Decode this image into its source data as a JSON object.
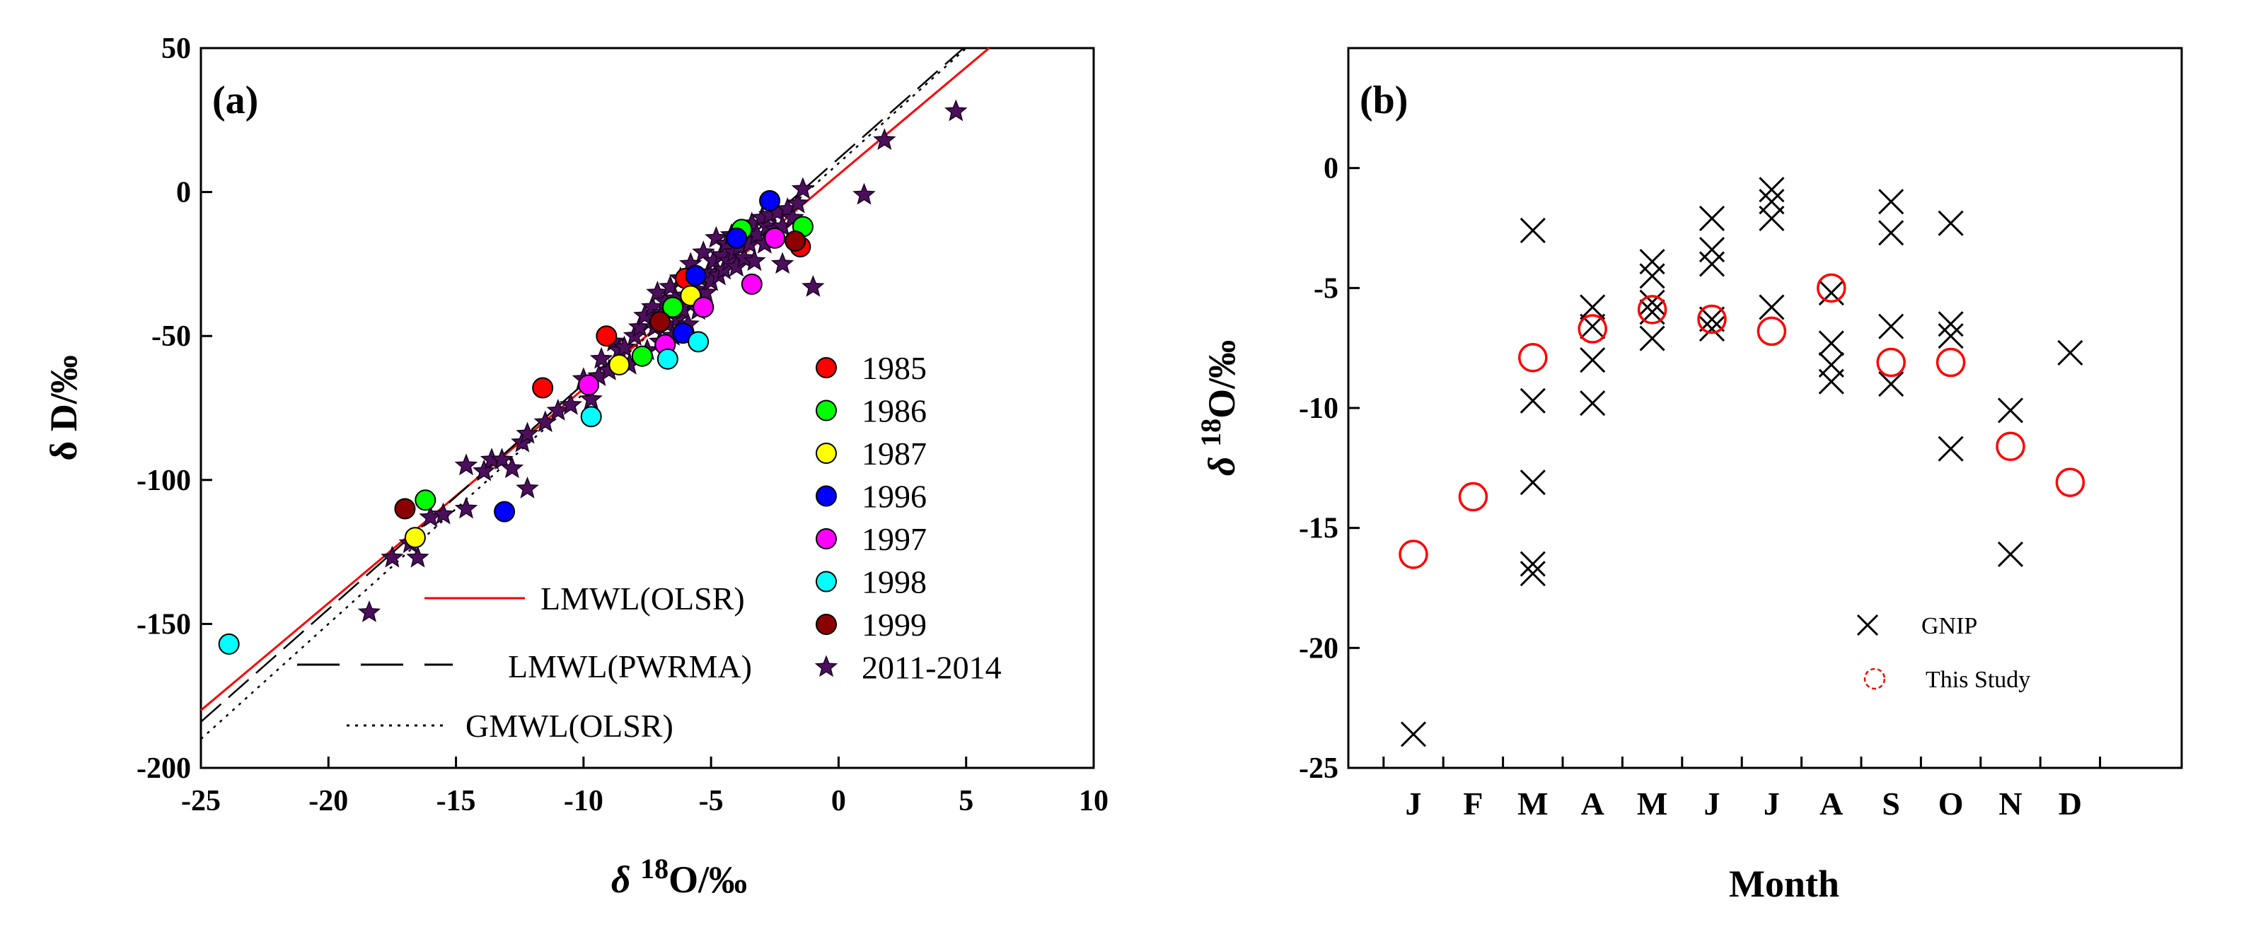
{
  "chart_data": [
    {
      "panel": "(a)",
      "type": "scatter",
      "xlabel": "δ 18O/‰",
      "xlabel_main": "δ ",
      "xlabel_sup": "18",
      "xlabel_tail": "O/‰",
      "ylabel": "δ  D/‰",
      "xlim": [
        -25,
        10
      ],
      "ylim": [
        -200,
        50
      ],
      "xticks": [
        "-25",
        "-20",
        "-15",
        "-10",
        "-5",
        "0",
        "5",
        "10"
      ],
      "yticks": [
        "50",
        "0",
        "-50",
        "-100",
        "-150",
        "-200"
      ],
      "series": [
        {
          "name": "1985",
          "color": "#ff0000",
          "marker": "circle",
          "points": [
            [
              -11.6,
              -68
            ],
            [
              -9.1,
              -50
            ],
            [
              -1.5,
              -19
            ],
            [
              -6,
              -30
            ]
          ]
        },
        {
          "name": "1986",
          "color": "#00ff00",
          "marker": "circle",
          "points": [
            [
              -16.2,
              -107
            ],
            [
              -7.7,
              -57
            ],
            [
              -3.8,
              -13
            ],
            [
              -1.4,
              -12
            ],
            [
              -6.5,
              -40
            ]
          ]
        },
        {
          "name": "1987",
          "color": "#ffff00",
          "marker": "circle",
          "points": [
            [
              -16.6,
              -120
            ],
            [
              -8.6,
              -60
            ],
            [
              -5.8,
              -36
            ]
          ]
        },
        {
          "name": "1996",
          "color": "#0000ff",
          "marker": "circle",
          "points": [
            [
              -13.1,
              -111
            ],
            [
              -6.1,
              -49
            ],
            [
              -5.6,
              -29
            ],
            [
              -4,
              -16
            ],
            [
              -2.7,
              -3
            ]
          ]
        },
        {
          "name": "1997",
          "color": "#ff00ff",
          "marker": "circle",
          "points": [
            [
              -9.8,
              -67
            ],
            [
              -6.8,
              -53
            ],
            [
              -3.4,
              -32
            ],
            [
              -2.5,
              -16
            ],
            [
              -5.3,
              -40
            ]
          ]
        },
        {
          "name": "1998",
          "color": "#00ffff",
          "marker": "circle",
          "points": [
            [
              -23.9,
              -157
            ],
            [
              -9.7,
              -78
            ],
            [
              -6.7,
              -58
            ],
            [
              -5.5,
              -52
            ]
          ]
        },
        {
          "name": "1999",
          "color": "#8b0000",
          "marker": "circle",
          "points": [
            [
              -17,
              -110
            ],
            [
              -1.7,
              -17
            ],
            [
              -7,
              -45
            ]
          ]
        },
        {
          "name": "2011-2014",
          "color": "#4b0f5c",
          "marker": "star",
          "points": [
            [
              -18.4,
              -146
            ],
            [
              -17.5,
              -127
            ],
            [
              -16.5,
              -127
            ],
            [
              -16.8,
              -122
            ],
            [
              -16,
              -113
            ],
            [
              -15.5,
              -112
            ],
            [
              -14.6,
              -110
            ],
            [
              -14.6,
              -95
            ],
            [
              -13.9,
              -97
            ],
            [
              -13.6,
              -93
            ],
            [
              -13.2,
              -93
            ],
            [
              -12.8,
              -96
            ],
            [
              -12.4,
              -87
            ],
            [
              -12.2,
              -84
            ],
            [
              -12.2,
              -103
            ],
            [
              -11.5,
              -80
            ],
            [
              -11,
              -76
            ],
            [
              -10.5,
              -74
            ],
            [
              -10,
              -65
            ],
            [
              -9.7,
              -72
            ],
            [
              -9.4,
              -64
            ],
            [
              -9.3,
              -58
            ],
            [
              -9,
              -62
            ],
            [
              -8.8,
              -52
            ],
            [
              -8.6,
              -55
            ],
            [
              -8.4,
              -54
            ],
            [
              -8.2,
              -60
            ],
            [
              -8,
              -50
            ],
            [
              -7.8,
              -47
            ],
            [
              -7.6,
              -43
            ],
            [
              -7.5,
              -55
            ],
            [
              -7.3,
              -40
            ],
            [
              -7.2,
              -47
            ],
            [
              -7.1,
              -35
            ],
            [
              -7,
              -52
            ],
            [
              -6.9,
              -42
            ],
            [
              -6.8,
              -38
            ],
            [
              -6.7,
              -46
            ],
            [
              -6.6,
              -33
            ],
            [
              -6.5,
              -50
            ],
            [
              -6.4,
              -37
            ],
            [
              -6.3,
              -44
            ],
            [
              -6.2,
              -30
            ],
            [
              -6.1,
              -41
            ],
            [
              -6,
              -36
            ],
            [
              -5.9,
              -46
            ],
            [
              -5.8,
              -25
            ],
            [
              -5.7,
              -38
            ],
            [
              -5.6,
              -34
            ],
            [
              -5.5,
              -41
            ],
            [
              -5.4,
              -30
            ],
            [
              -5.3,
              -21
            ],
            [
              -5.2,
              -35
            ],
            [
              -5.1,
              -28
            ],
            [
              -5,
              -31
            ],
            [
              -4.9,
              -24
            ],
            [
              -4.8,
              -16
            ],
            [
              -4.7,
              -29
            ],
            [
              -4.6,
              -22
            ],
            [
              -4.5,
              -27
            ],
            [
              -4.4,
              -18
            ],
            [
              -4.3,
              -24
            ],
            [
              -4.2,
              -15
            ],
            [
              -4.1,
              -21
            ],
            [
              -4,
              -26
            ],
            [
              -3.9,
              -19
            ],
            [
              -3.7,
              -23
            ],
            [
              -3.6,
              -14
            ],
            [
              -3.5,
              -18
            ],
            [
              -3.4,
              -11
            ],
            [
              -3.3,
              -24
            ],
            [
              -3.2,
              -15
            ],
            [
              -3,
              -9
            ],
            [
              -2.9,
              -18
            ],
            [
              -2.8,
              -12
            ],
            [
              -2.7,
              -8
            ],
            [
              -2.5,
              -13
            ],
            [
              -2.4,
              -7
            ],
            [
              -2.2,
              -12
            ],
            [
              -2,
              -6
            ],
            [
              -1.8,
              -9
            ],
            [
              -1.6,
              -4
            ],
            [
              -1.4,
              1
            ],
            [
              -2.2,
              -25
            ],
            [
              -1,
              -33
            ],
            [
              1,
              -1
            ],
            [
              1.8,
              18
            ],
            [
              4.6,
              28
            ]
          ]
        }
      ],
      "lines": [
        {
          "name": "LMWL(OLSR)",
          "color": "#ff0000",
          "style": "solid",
          "x": [
            -25,
            5.9
          ],
          "y": [
            -180,
            50
          ]
        },
        {
          "name": "LMWL(PWRMA)",
          "color": "#000000",
          "style": "dashed",
          "x": [
            -25,
            4.9
          ],
          "y": [
            -184,
            50
          ]
        },
        {
          "name": "GMWL(OLSR)",
          "color": "#000000",
          "style": "dotted",
          "x": [
            -25,
            5
          ],
          "y": [
            -190,
            50
          ]
        }
      ],
      "legend": {
        "placement": "right",
        "items": [
          "1985",
          "1986",
          "1987",
          "1996",
          "1997",
          "1998",
          "1999",
          "2011-2014"
        ],
        "line_items": [
          "LMWL(OLSR)",
          "LMWL(PWRMA)",
          "GMWL(OLSR)"
        ]
      }
    },
    {
      "panel": "(b)",
      "type": "scatter",
      "xlabel": "Month",
      "ylabel": "δ 18O/‰",
      "ylabel_main": "δ ",
      "ylabel_sup": "18",
      "ylabel_tail": "O/‰",
      "ylim": [
        -25,
        5
      ],
      "yticks": [
        "0",
        "-5",
        "-10",
        "-15",
        "-20",
        "-25"
      ],
      "categories": [
        "J",
        "F",
        "M",
        "A",
        "M",
        "J",
        "J",
        "A",
        "S",
        "O",
        "N",
        "D"
      ],
      "series": [
        {
          "name": "GNIP",
          "color": "#000000",
          "marker": "x",
          "points": [
            [
              1,
              -23.6
            ],
            [
              3,
              -2.6
            ],
            [
              3,
              -9.7
            ],
            [
              3,
              -13.1
            ],
            [
              3,
              -16.5
            ],
            [
              3,
              -16.9
            ],
            [
              4,
              -5.8
            ],
            [
              4,
              -6.6
            ],
            [
              4,
              -8
            ],
            [
              4,
              -9.8
            ],
            [
              5,
              -3.9
            ],
            [
              5,
              -4.5
            ],
            [
              5,
              -5.6
            ],
            [
              5,
              -6
            ],
            [
              5,
              -7.1
            ],
            [
              6,
              -2.1
            ],
            [
              6,
              -3.4
            ],
            [
              6,
              -4
            ],
            [
              6,
              -6.3
            ],
            [
              6,
              -6.7
            ],
            [
              7,
              -0.9
            ],
            [
              7,
              -1.4
            ],
            [
              7,
              -2.1
            ],
            [
              7,
              -5.8
            ],
            [
              8,
              -5.2
            ],
            [
              8,
              -7.3
            ],
            [
              8,
              -8.2
            ],
            [
              8,
              -8.9
            ],
            [
              9,
              -1.4
            ],
            [
              9,
              -2.7
            ],
            [
              9,
              -6.6
            ],
            [
              9,
              -9
            ],
            [
              10,
              -2.3
            ],
            [
              10,
              -6.5
            ],
            [
              10,
              -7
            ],
            [
              10,
              -11.7
            ],
            [
              11,
              -10.1
            ],
            [
              11,
              -16.1
            ],
            [
              12,
              -7.7
            ]
          ]
        },
        {
          "name": "This Study",
          "color": "#ff0000",
          "marker": "open-circle",
          "points": [
            [
              1,
              -16.1
            ],
            [
              2,
              -13.7
            ],
            [
              3,
              -7.9
            ],
            [
              4,
              -6.7
            ],
            [
              5,
              -5.9
            ],
            [
              6,
              -6.3
            ],
            [
              7,
              -6.8
            ],
            [
              8,
              -5
            ],
            [
              9,
              -8.1
            ],
            [
              10,
              -8.1
            ],
            [
              11,
              -11.6
            ],
            [
              12,
              -13.1
            ]
          ]
        }
      ],
      "legend": {
        "placement": "bottom-center",
        "items": [
          "GNIP",
          "This Study"
        ]
      }
    }
  ]
}
